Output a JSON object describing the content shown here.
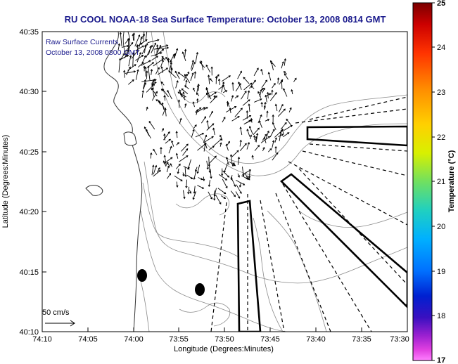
{
  "title": "RU COOL  NOAA-18  Sea Surface Temperature:  October 13, 2008 0814 GMT",
  "legend": {
    "line1": "Raw Surface Currents",
    "line2": "October 13, 2008 0800 GMT"
  },
  "scale": {
    "label": "50 cm/s"
  },
  "xaxis": {
    "label": "Longitude (Degrees:Minutes)",
    "ticks": [
      "74:10",
      "74:05",
      "74:00",
      "73:55",
      "73:50",
      "73:45",
      "73:40",
      "73:35",
      "73:30"
    ]
  },
  "yaxis": {
    "label": "Latitude (Degrees:Minutes)",
    "ticks": [
      "40:35",
      "40:30",
      "40:25",
      "40:20",
      "40:15",
      "40:10"
    ]
  },
  "colorbar": {
    "label": "Temperature (°C)",
    "ticks": [
      "25",
      "24",
      "23",
      "22",
      "21",
      "20",
      "19",
      "18",
      "17"
    ],
    "min": 17,
    "max": 25
  },
  "colors": {
    "title": "#1a1a8c",
    "land": "#ffffff",
    "contour": "#808080"
  }
}
